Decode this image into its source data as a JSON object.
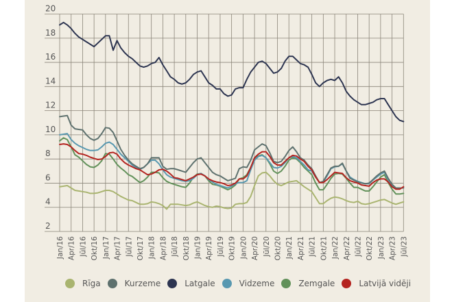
{
  "chart_data": {
    "type": "line",
    "title": "",
    "xlabel": "",
    "ylabel": "",
    "ylim": [
      2,
      20
    ],
    "yticks": [
      "20",
      "18",
      "16",
      "14",
      "12",
      "10",
      "8",
      "6",
      "4",
      "2"
    ],
    "grid": true,
    "legend_position": "bottom",
    "x_tick_labels": [
      "Jan/16",
      "Apr/16",
      "Jūl/16",
      "Okt/16",
      "Jan/17",
      "Apr/17",
      "Jūl/17",
      "Okt/17",
      "Jan/18",
      "Apr/18",
      "Jūl/18",
      "Okt/18",
      "Jan/19",
      "Apr/19",
      "Jūl/19",
      "Okt/19",
      "Jan/20",
      "Apr/20",
      "Jūl/20",
      "Okt/20",
      "Jan/21",
      "Apr/21",
      "Jūl/21",
      "Okt/21",
      "Jan/22",
      "Apr/22",
      "Jūl/22",
      "Okt/22",
      "Jan/23",
      "Apr/23",
      "Jūl/23"
    ],
    "x_note": "monthly data, January 2016 to July 2023 (91 points)",
    "series": [
      {
        "name": "Rīga",
        "color": "#a9b46f",
        "values": [
          5.7,
          5.75,
          5.8,
          5.6,
          5.4,
          5.35,
          5.3,
          5.25,
          5.15,
          5.15,
          5.2,
          5.3,
          5.4,
          5.4,
          5.3,
          5.1,
          4.9,
          4.75,
          4.6,
          4.55,
          4.4,
          4.25,
          4.25,
          4.3,
          4.45,
          4.4,
          4.3,
          4.15,
          3.85,
          4.25,
          4.25,
          4.25,
          4.2,
          4.15,
          4.2,
          4.35,
          4.45,
          4.3,
          4.15,
          4.05,
          4.0,
          4.1,
          4.05,
          3.95,
          3.9,
          3.95,
          4.25,
          4.3,
          4.3,
          4.4,
          4.9,
          5.8,
          6.6,
          6.85,
          6.9,
          6.6,
          6.2,
          5.9,
          5.8,
          5.95,
          6.1,
          6.15,
          6.2,
          5.95,
          5.7,
          5.5,
          5.3,
          4.8,
          4.3,
          4.3,
          4.55,
          4.75,
          4.85,
          4.8,
          4.7,
          4.55,
          4.45,
          4.4,
          4.5,
          4.3,
          4.25,
          4.3,
          4.4,
          4.5,
          4.6,
          4.65,
          4.5,
          4.35,
          4.25,
          4.35,
          4.45
        ]
      },
      {
        "name": "Kurzeme",
        "color": "#5e716e",
        "values": [
          11.5,
          11.55,
          11.6,
          10.8,
          10.5,
          10.45,
          10.4,
          10.0,
          9.7,
          9.55,
          9.7,
          10.1,
          10.6,
          10.55,
          10.2,
          9.5,
          8.8,
          8.3,
          7.9,
          7.6,
          7.4,
          7.2,
          7.3,
          7.6,
          8.1,
          8.1,
          8.1,
          7.4,
          7.15,
          7.2,
          7.2,
          7.1,
          7.0,
          6.9,
          7.3,
          7.7,
          8.0,
          8.1,
          7.7,
          7.3,
          6.9,
          6.7,
          6.6,
          6.4,
          6.2,
          6.3,
          6.4,
          7.2,
          7.35,
          7.3,
          7.9,
          8.75,
          9.0,
          9.25,
          9.1,
          8.5,
          7.8,
          7.7,
          7.8,
          8.2,
          8.7,
          9.0,
          8.6,
          8.1,
          7.9,
          7.5,
          7.2,
          6.6,
          6.05,
          6.15,
          6.7,
          7.25,
          7.4,
          7.4,
          7.65,
          7.0,
          6.4,
          6.25,
          6.1,
          6.0,
          5.95,
          6.0,
          6.3,
          6.6,
          6.85,
          7.0,
          6.4,
          5.9,
          5.6,
          5.6,
          5.6
        ]
      },
      {
        "name": "Latgale",
        "color": "#2c3450",
        "values": [
          19.1,
          19.3,
          19.1,
          18.8,
          18.4,
          18.1,
          17.9,
          17.7,
          17.5,
          17.3,
          17.6,
          17.9,
          18.2,
          18.2,
          17.0,
          17.8,
          17.2,
          16.8,
          16.5,
          16.3,
          16.0,
          15.7,
          15.6,
          15.7,
          15.9,
          16.0,
          16.4,
          15.8,
          15.3,
          14.8,
          14.6,
          14.3,
          14.2,
          14.3,
          14.6,
          15.0,
          15.2,
          15.3,
          14.8,
          14.3,
          14.1,
          13.8,
          13.8,
          13.4,
          13.2,
          13.3,
          13.8,
          13.9,
          13.9,
          14.6,
          15.2,
          15.6,
          16.0,
          16.1,
          15.9,
          15.5,
          15.1,
          15.2,
          15.5,
          16.1,
          16.5,
          16.5,
          16.2,
          15.9,
          15.8,
          15.6,
          15.0,
          14.3,
          14.0,
          14.3,
          14.5,
          14.6,
          14.5,
          14.8,
          14.3,
          13.6,
          13.2,
          12.9,
          12.7,
          12.5,
          12.5,
          12.6,
          12.7,
          12.9,
          13.0,
          13.0,
          12.5,
          12.0,
          11.5,
          11.2,
          11.1
        ]
      },
      {
        "name": "Vidzeme",
        "color": "#5898b0",
        "values": [
          10.0,
          10.05,
          10.1,
          9.6,
          9.3,
          9.1,
          8.95,
          8.8,
          8.7,
          8.7,
          8.75,
          9.0,
          9.3,
          9.4,
          9.2,
          8.8,
          8.4,
          8.1,
          7.8,
          7.5,
          7.3,
          7.15,
          7.3,
          7.6,
          7.9,
          7.9,
          7.6,
          7.1,
          6.7,
          6.5,
          6.4,
          6.3,
          6.2,
          6.15,
          6.2,
          6.4,
          6.7,
          6.8,
          6.6,
          6.3,
          6.1,
          5.9,
          5.8,
          5.7,
          5.6,
          5.75,
          5.95,
          6.05,
          6.05,
          6.2,
          7.1,
          7.9,
          8.2,
          8.3,
          8.1,
          7.7,
          7.3,
          7.25,
          7.4,
          7.7,
          8.1,
          8.2,
          8.1,
          7.8,
          7.5,
          7.1,
          7.0,
          6.5,
          6.05,
          6.1,
          6.6,
          7.2,
          7.35,
          7.4,
          7.6,
          7.0,
          6.5,
          6.3,
          6.15,
          6.05,
          5.95,
          5.95,
          6.25,
          6.5,
          6.75,
          6.9,
          6.3,
          5.8,
          5.55,
          5.55,
          5.65
        ]
      },
      {
        "name": "Zemgale",
        "color": "#62915a",
        "values": [
          9.5,
          9.75,
          9.6,
          9.0,
          8.35,
          8.15,
          7.85,
          7.55,
          7.35,
          7.3,
          7.5,
          7.85,
          8.45,
          8.4,
          8.0,
          7.55,
          7.25,
          7.0,
          6.7,
          6.55,
          6.3,
          6.05,
          6.2,
          6.5,
          6.9,
          6.9,
          6.85,
          6.45,
          6.15,
          6.0,
          5.9,
          5.8,
          5.7,
          5.65,
          6.0,
          6.5,
          6.75,
          6.8,
          6.6,
          6.2,
          5.9,
          5.85,
          5.75,
          5.6,
          5.45,
          5.6,
          5.85,
          6.35,
          6.45,
          6.7,
          7.3,
          8.0,
          8.25,
          8.35,
          8.1,
          7.6,
          7.0,
          6.8,
          7.0,
          7.4,
          7.9,
          8.1,
          8.0,
          7.7,
          7.3,
          7.0,
          6.7,
          6.0,
          5.45,
          5.45,
          5.9,
          6.4,
          6.75,
          6.8,
          6.75,
          6.4,
          6.0,
          5.65,
          5.65,
          5.5,
          5.35,
          5.35,
          5.7,
          6.1,
          6.5,
          6.7,
          6.05,
          5.5,
          5.1,
          5.1,
          5.15
        ]
      },
      {
        "name": "Latvijā vidēji",
        "color": "#b42420",
        "values": [
          9.2,
          9.25,
          9.2,
          9.0,
          8.7,
          8.45,
          8.4,
          8.3,
          8.15,
          8.05,
          7.95,
          8.0,
          8.2,
          8.5,
          8.55,
          8.4,
          8.0,
          7.7,
          7.5,
          7.35,
          7.2,
          7.1,
          6.9,
          6.7,
          6.75,
          6.9,
          7.1,
          7.15,
          7.0,
          6.75,
          6.45,
          6.4,
          6.3,
          6.2,
          6.35,
          6.5,
          6.7,
          6.75,
          6.6,
          6.35,
          6.2,
          6.1,
          6.05,
          5.95,
          5.8,
          5.85,
          6.0,
          6.35,
          6.35,
          6.6,
          7.3,
          8.1,
          8.4,
          8.6,
          8.6,
          8.2,
          7.7,
          7.5,
          7.5,
          7.8,
          8.1,
          8.3,
          8.25,
          8.0,
          7.8,
          7.4,
          7.1,
          6.5,
          6.05,
          6.05,
          6.3,
          6.6,
          6.9,
          6.85,
          6.8,
          6.45,
          6.2,
          6.1,
          6.0,
          5.85,
          5.8,
          5.75,
          6.05,
          6.25,
          6.35,
          6.35,
          6.1,
          5.7,
          5.5,
          5.5,
          5.7
        ]
      }
    ]
  }
}
